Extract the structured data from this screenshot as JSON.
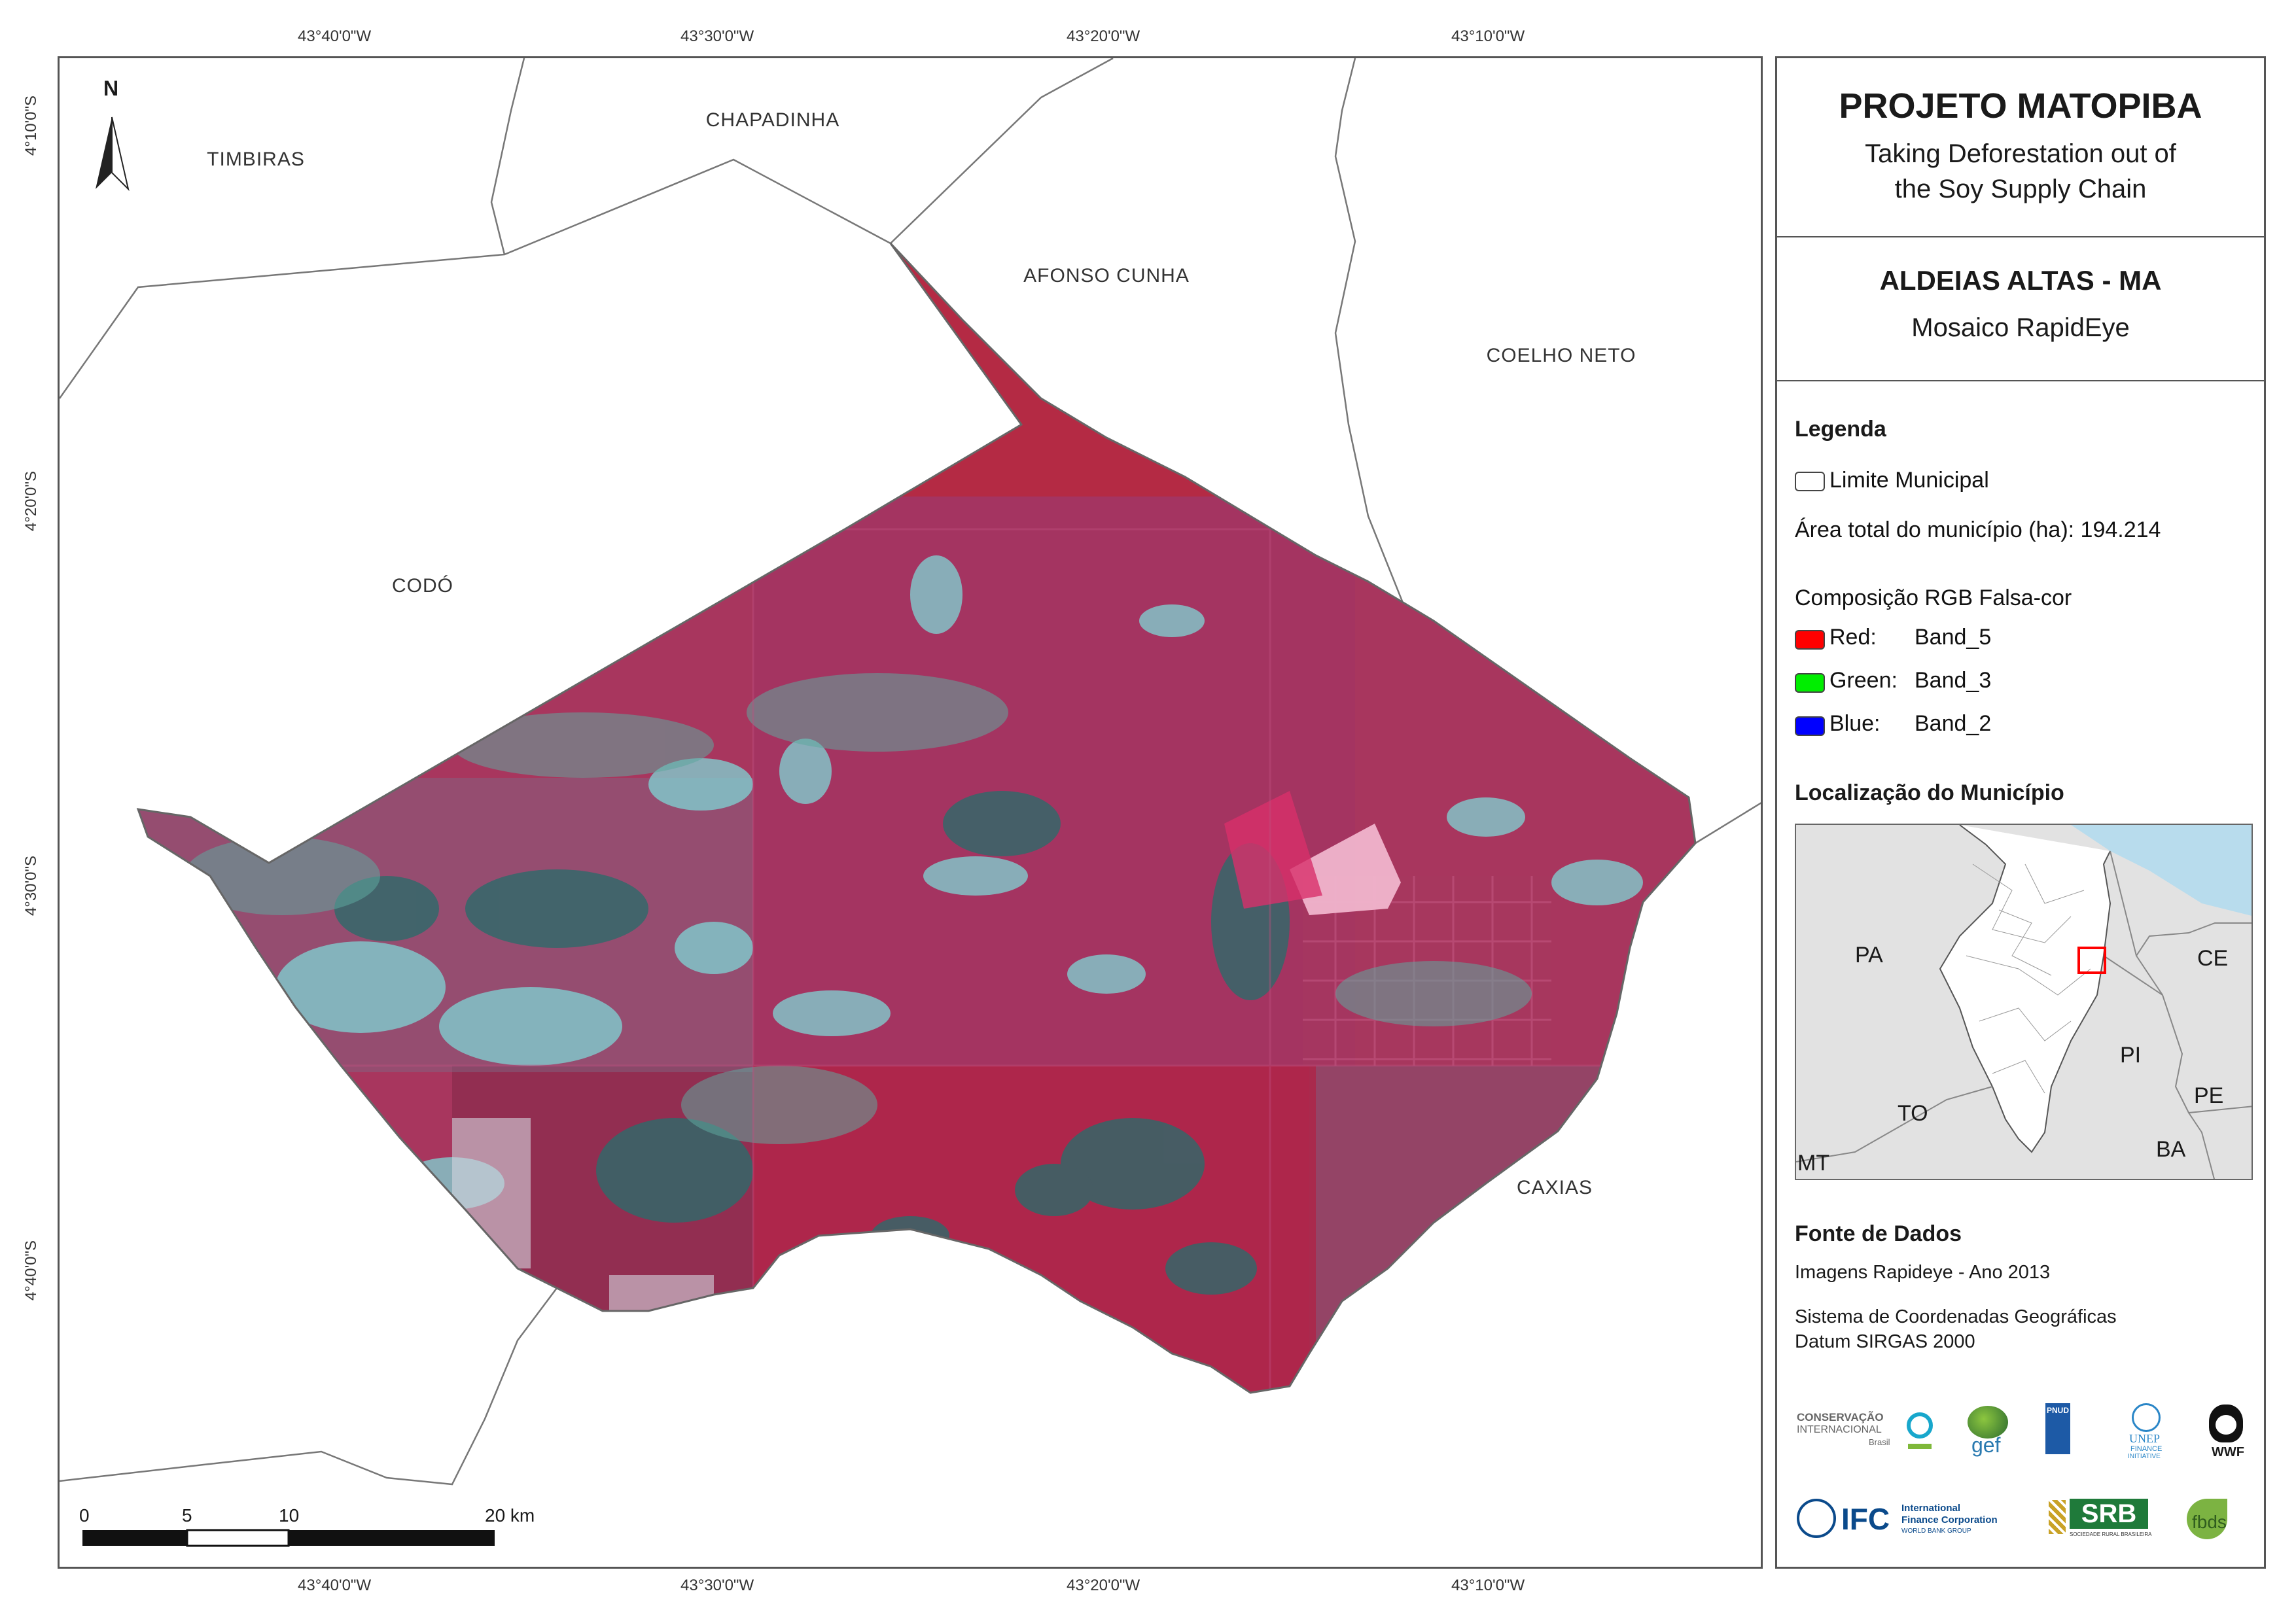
{
  "coordinates": {
    "top": [
      "43°40'0\"W",
      "43°30'0\"W",
      "43°20'0\"W",
      "43°10'0\"W"
    ],
    "bottom": [
      "43°40'0\"W",
      "43°30'0\"W",
      "43°20'0\"W",
      "43°10'0\"W"
    ],
    "left": [
      "4°10'0\"S",
      "4°20'0\"S",
      "4°30'0\"S",
      "4°40'0\"S"
    ]
  },
  "north_arrow": {
    "label": "N"
  },
  "municipalities": {
    "timbiras": "TIMBIRAS",
    "chapadinha": "CHAPADINHA",
    "afonso_cunha": "AFONSO CUNHA",
    "coelho_neto": "COELHO NETO",
    "codo": "CODÓ",
    "caxias": "CAXIAS"
  },
  "scale_bar": {
    "ticks": [
      "0",
      "5",
      "10",
      "20 km"
    ]
  },
  "panel": {
    "project_title": "PROJETO MATOPIBA",
    "project_subtitle_line1": "Taking Deforestation out of",
    "project_subtitle_line2": "the Soy Supply Chain",
    "map_title": "ALDEIAS ALTAS - MA",
    "map_subtitle": "Mosaico RapidEye",
    "legend_heading": "Legenda",
    "legend_boundary": "Limite Municipal",
    "legend_area": "Área total do município (ha): 194.214",
    "legend_rgb_heading": "Composição RGB Falsa-cor",
    "bands": [
      {
        "channel": "Red:",
        "band": "Band_5",
        "color": "#ff0000"
      },
      {
        "channel": "Green:",
        "band": "Band_3",
        "color": "#00ee00"
      },
      {
        "channel": "Blue:",
        "band": "Band_2",
        "color": "#0000ff"
      }
    ],
    "location_heading": "Localização do Município",
    "locator_states": [
      "PA",
      "CE",
      "PI",
      "PE",
      "TO",
      "BA",
      "MT"
    ],
    "sources_heading": "Fonte de Dados",
    "source_images": "Imagens Rapideye - Ano 2013",
    "crs_line1": "Sistema de Coordenadas Geográficas",
    "crs_line2": "Datum SIRGAS 2000"
  },
  "logos": {
    "ci_line1": "CONSERVAÇÃO",
    "ci_line2": "INTERNACIONAL",
    "ci_line3": "Brasil",
    "gef": "gef",
    "pnud": "PNUD",
    "unep_line1": "UNEP",
    "unep_line2": "FINANCE",
    "unep_line3": "INITIATIVE",
    "wwf": "WWF",
    "ifc": "IFC",
    "ifc_sub1": "International",
    "ifc_sub2": "Finance Corporation",
    "ifc_sub3": "WORLD BANK GROUP",
    "srb": "SRB",
    "srb_sub": "SOCIEDADE RURAL BRASILEIRA",
    "fbds": "fbds"
  },
  "colors": {
    "veg_red": "#b0284a",
    "veg_magenta": "#9c3a6a",
    "bare_cyan": "#7fd6d6",
    "dark_teal": "#2d6a6a",
    "sea": "#b8dced",
    "locator_land": "#e2e2e2",
    "highlight": "#ff0000"
  }
}
